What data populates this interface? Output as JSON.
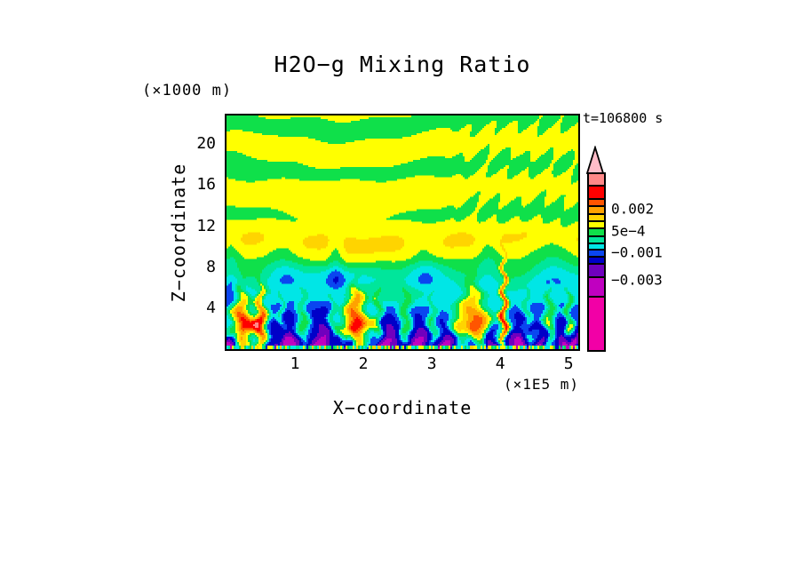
{
  "title": "H2O−g Mixing Ratio",
  "annotations": {
    "z_axis_units": "(×1000 m)",
    "x_axis_units": "(×1E5 m)",
    "time_label": "t=106800 s"
  },
  "axes": {
    "x": {
      "label": "X−coordinate",
      "ticks": [
        1,
        2,
        3,
        4,
        5
      ],
      "range": [
        0,
        5.14
      ]
    },
    "z": {
      "label": "Z−coordinate",
      "ticks": [
        4,
        8,
        12,
        16,
        20
      ],
      "range": [
        0,
        22.8
      ]
    }
  },
  "colorbar": {
    "arrow_color": "#FFBCC8",
    "segments": [
      {
        "color": "#FF8888",
        "h": 14
      },
      {
        "color": "#FF0000",
        "h": 15
      },
      {
        "color": "#FF5500",
        "h": 8
      },
      {
        "color": "#FFA200",
        "h": 9
      },
      {
        "color": "#FFD400",
        "h": 8
      },
      {
        "color": "#FFFF00",
        "h": 8
      },
      {
        "color": "#0FE04A",
        "h": 9
      },
      {
        "color": "#00E69B",
        "h": 8
      },
      {
        "color": "#00E6E6",
        "h": 7
      },
      {
        "color": "#0A46F0",
        "h": 8
      },
      {
        "color": "#0000C8",
        "h": 8
      },
      {
        "color": "#7000BE",
        "h": 15
      },
      {
        "color": "#C000C0",
        "h": 22
      },
      {
        "color": "#F200A6",
        "h": 59
      }
    ],
    "labels": [
      {
        "text": "0.002",
        "after_segment": 2
      },
      {
        "text": "5e−4",
        "after_segment": 5
      },
      {
        "text": "−0.001",
        "after_segment": 8
      },
      {
        "text": "−0.003",
        "after_segment": 11
      }
    ]
  },
  "chart_data": {
    "type": "filled_contour",
    "title": "H2O−g Mixing Ratio",
    "xlabel": "X−coordinate (×1E5 m)",
    "ylabel": "Z−coordinate (×1000 m)",
    "time": "t=106800 s",
    "x_range": [
      0,
      5.14
    ],
    "z_range": [
      0,
      22.8
    ],
    "grid": false,
    "legend_position": "right-colorbar",
    "levels": [
      0.003,
      0.002,
      0.0015,
      0.001,
      0.0005,
      0,
      -0.0005,
      -0.001,
      -0.0015,
      -0.002,
      -0.003,
      -0.004,
      -0.005
    ],
    "palette": [
      "#FF8888",
      "#FF0000",
      "#FF5500",
      "#FFA200",
      "#FFD400",
      "#FFFF00",
      "#0FE04A",
      "#00E69B",
      "#00E6E6",
      "#0A46F0",
      "#0000C8",
      "#7000BE",
      "#C000C0",
      "#F200A6"
    ],
    "field": {
      "warp": {
        "amp": 0.008,
        "freq_v": 40,
        "freq_u": 21
      },
      "upper": {
        "band_freq": 5.0,
        "band_amp": 0.00027,
        "bias": 6e-05,
        "phase0": 3.7,
        "wiggle_amp": 0.1,
        "wiggle_freq": 7,
        "noise_amp": 0.25,
        "boost": {
          "u": 0.33,
          "su": 0.28,
          "v": 0.4,
          "sv": 0.14,
          "amp": 0.00025
        },
        "stripes": {
          "u0": 0.6,
          "u1": 0.72,
          "v0": 0.42,
          "v1": 0.52,
          "fu": 100,
          "fv": 45,
          "amp": 0.0003
        },
        "clamp": 0.00046
      },
      "mid_push": {
        "amp": 0.00025,
        "v_in0": 0.42,
        "v_in1": 0.55,
        "v_out0": 0.62,
        "v_out1": 0.72
      },
      "green_col_amp": 0.0006,
      "green_columns": [
        [
          0.01,
          0.025
        ],
        [
          0.16,
          0.05
        ],
        [
          0.31,
          0.02
        ],
        [
          0.56,
          0.045
        ],
        [
          0.745,
          0.03
        ],
        [
          0.93,
          0.05
        ]
      ],
      "deep": {
        "amp": -0.0014,
        "v0": 0.6,
        "v1": 0.73,
        "deep2": -0.0005,
        "mottle": 0.0008,
        "mfu": 10,
        "mfv": 9
      },
      "plume_damp": 0.45,
      "plumes": [
        [
          0.04,
          0.026,
          0.004,
          0.68
        ],
        [
          0.095,
          0.014,
          0.0036,
          0.66
        ],
        [
          0.155,
          0.01,
          0.0016,
          0.74
        ],
        [
          0.215,
          0.015,
          0.0018,
          0.71
        ],
        [
          0.3,
          0.012,
          0.0015,
          0.73
        ],
        [
          0.365,
          0.028,
          0.004,
          0.67
        ],
        [
          0.43,
          0.013,
          0.002,
          0.7
        ],
        [
          0.51,
          0.015,
          0.0019,
          0.7
        ],
        [
          0.585,
          0.011,
          0.0014,
          0.73
        ],
        [
          0.7,
          0.042,
          0.004,
          0.66
        ],
        [
          0.79,
          0.0075,
          0.0036,
          0.5
        ],
        [
          0.855,
          0.013,
          0.0016,
          0.72
        ],
        [
          0.92,
          0.016,
          0.0021,
          0.69
        ],
        [
          0.975,
          0.011,
          0.0024,
          0.7
        ]
      ],
      "pools": [
        [
          0.015,
          0.018,
          0.0026,
          0.84
        ],
        [
          0.165,
          0.04,
          0.0029,
          0.79
        ],
        [
          0.275,
          0.036,
          0.003,
          0.78
        ],
        [
          0.345,
          0.014,
          0.0024,
          0.86
        ],
        [
          0.455,
          0.036,
          0.0029,
          0.79
        ],
        [
          0.545,
          0.03,
          0.0028,
          0.8
        ],
        [
          0.625,
          0.022,
          0.0027,
          0.82
        ],
        [
          0.69,
          0.02,
          0.0026,
          0.84
        ],
        [
          0.755,
          0.016,
          0.0027,
          0.82
        ],
        [
          0.84,
          0.028,
          0.0028,
          0.8
        ],
        [
          0.9,
          0.016,
          0.0025,
          0.83
        ],
        [
          0.96,
          0.02,
          0.0028,
          0.8
        ],
        [
          0.995,
          0.01,
          0.0023,
          0.84
        ]
      ],
      "strip": {
        "v0": 0.986,
        "cols": 240,
        "vals": [
          -0.0012,
          -0.00025,
          0.0003,
          0.0009,
          -0.0007
        ]
      }
    }
  }
}
